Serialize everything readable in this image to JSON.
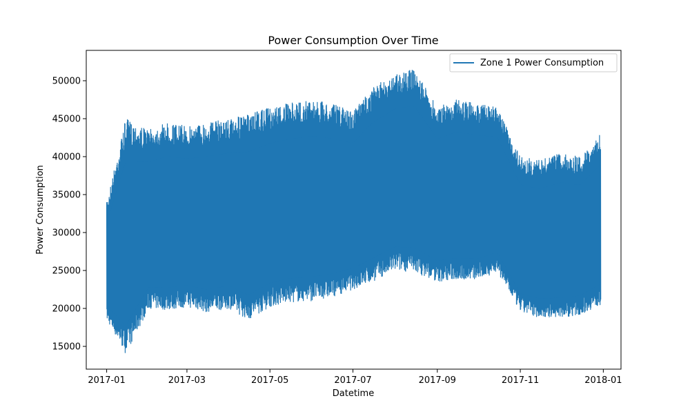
{
  "chart_data": {
    "type": "line",
    "title": "Power Consumption Over Time",
    "xlabel": "Datetime",
    "ylabel": "Power Consumption",
    "xlim": [
      "2016-12-17",
      "2018-01-14"
    ],
    "ylim": [
      12000,
      54000
    ],
    "x_ticks": [
      "2017-01",
      "2017-03",
      "2017-05",
      "2017-07",
      "2017-09",
      "2017-11",
      "2018-01"
    ],
    "y_ticks": [
      15000,
      20000,
      25000,
      30000,
      35000,
      40000,
      45000,
      50000
    ],
    "grid": false,
    "legend_position": "top-right",
    "series": [
      {
        "name": "Zone 1 Power Consumption",
        "color": "#1f77b4",
        "x": [
          "2017-01-01",
          "2017-01-15",
          "2017-02-01",
          "2017-02-15",
          "2017-03-01",
          "2017-03-15",
          "2017-04-01",
          "2017-04-15",
          "2017-05-01",
          "2017-05-15",
          "2017-06-01",
          "2017-06-15",
          "2017-07-01",
          "2017-07-15",
          "2017-08-01",
          "2017-08-15",
          "2017-09-01",
          "2017-09-15",
          "2017-10-01",
          "2017-10-15",
          "2017-11-01",
          "2017-11-15",
          "2017-12-01",
          "2017-12-15",
          "2017-12-30"
        ],
        "high": [
          34000,
          45000,
          43500,
          44500,
          44000,
          44500,
          45000,
          45500,
          46500,
          47000,
          47500,
          47000,
          46000,
          49000,
          51000,
          51500,
          46500,
          47500,
          47000,
          46500,
          40000,
          39500,
          40500,
          40000,
          43000
        ],
        "low": [
          18500,
          14000,
          20000,
          19800,
          20200,
          19500,
          20000,
          18500,
          20200,
          20800,
          21000,
          21500,
          22500,
          23500,
          25000,
          24800,
          23500,
          23800,
          23800,
          24800,
          19500,
          18800,
          18800,
          19200,
          20500
        ]
      }
    ]
  }
}
